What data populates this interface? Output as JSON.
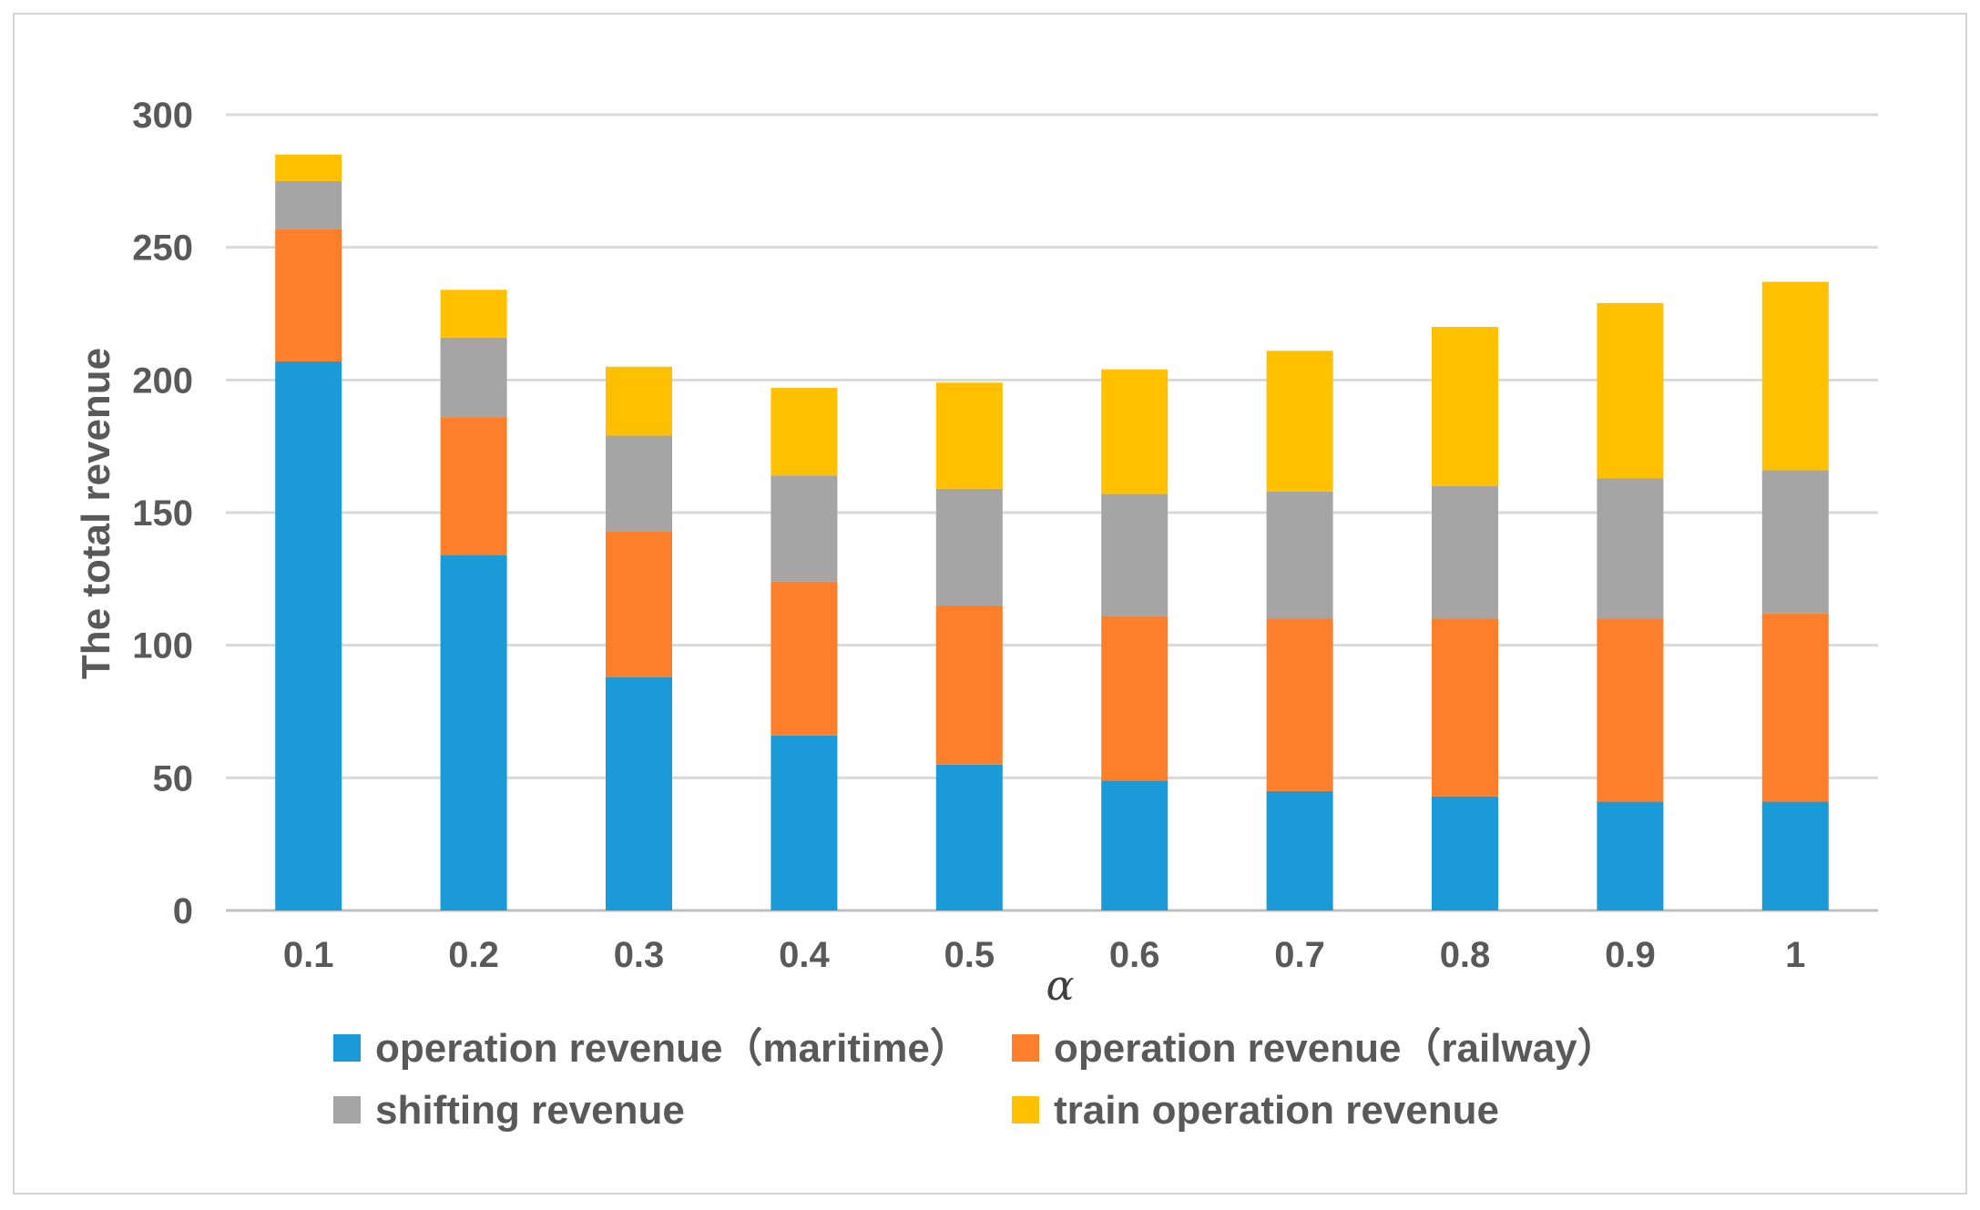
{
  "chart_data": {
    "type": "bar",
    "stacked": true,
    "title": "",
    "xlabel": "α",
    "ylabel": "The total revenue",
    "ylim": [
      0,
      300
    ],
    "yticks": [
      "0",
      "50",
      "100",
      "150",
      "200",
      "250",
      "300"
    ],
    "grid": true,
    "legend_position": "bottom",
    "categories": [
      "0.1",
      "0.2",
      "0.3",
      "0.4",
      "0.5",
      "0.6",
      "0.7",
      "0.8",
      "0.9",
      "1"
    ],
    "series": [
      {
        "name": "operation revenue（maritime）",
        "color": "#1a9ad6",
        "values": [
          207,
          134,
          88,
          66,
          55,
          49,
          45,
          43,
          41,
          41
        ]
      },
      {
        "name": "operation revenue（railway）",
        "color": "#fd7f2c",
        "values": [
          50,
          52,
          55,
          58,
          60,
          62,
          65,
          67,
          69,
          71
        ]
      },
      {
        "name": "shifting revenue",
        "color": "#a5a5a5",
        "values": [
          18,
          30,
          36,
          40,
          44,
          46,
          48,
          50,
          53,
          54
        ]
      },
      {
        "name": "train operation revenue",
        "color": "#ffc000",
        "values": [
          10,
          18,
          26,
          33,
          40,
          47,
          53,
          60,
          66,
          71
        ]
      }
    ]
  }
}
